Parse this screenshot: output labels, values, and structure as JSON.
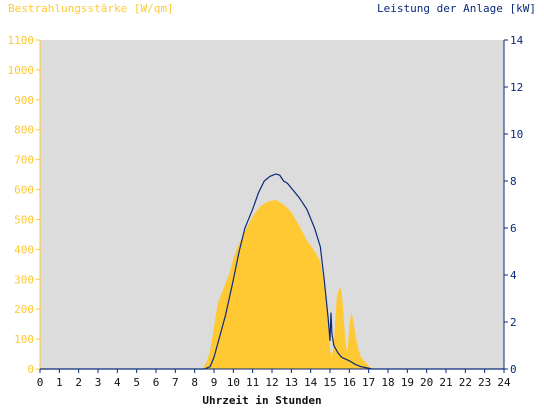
{
  "chart_data": {
    "type": "area",
    "left_axis_title": "Bestrahlungsstärke [W/qm]",
    "right_axis_title": "Leistung der Anlage [kW]",
    "xlabel": "Uhrzeit in Stunden",
    "x_ticks": [
      "0",
      "1",
      "2",
      "3",
      "4",
      "5",
      "6",
      "7",
      "8",
      "9",
      "10",
      "11",
      "12",
      "13",
      "14",
      "15",
      "16",
      "17",
      "18",
      "19",
      "20",
      "21",
      "22",
      "23",
      "24"
    ],
    "left_ticks": [
      "0",
      "100",
      "200",
      "300",
      "400",
      "500",
      "600",
      "700",
      "800",
      "900",
      "1000",
      "1100"
    ],
    "right_ticks": [
      "0",
      "2",
      "4",
      "6",
      "8",
      "10",
      "12",
      "14"
    ],
    "xlim": [
      0,
      24
    ],
    "ylim_left": [
      0,
      1100
    ],
    "ylim_right": [
      0,
      14
    ],
    "grid": false,
    "colors": {
      "plot_bg": "#dcdcdc",
      "irradiance": "#ffc933",
      "power": "#0a2a7a",
      "left_axis_text": "#ffc933",
      "right_axis_text": "#0a2a7a"
    },
    "series": [
      {
        "type": "area",
        "axis": "left",
        "x": [
          0,
          8.4,
          8.6,
          8.8,
          9.0,
          9.2,
          9.5,
          9.8,
          10.0,
          10.3,
          10.6,
          11.0,
          11.4,
          11.8,
          12.2,
          12.6,
          13.0,
          13.4,
          13.8,
          14.2,
          14.5,
          14.7,
          14.9,
          15.0,
          15.1,
          15.2,
          15.35,
          15.5,
          15.6,
          15.7,
          15.8,
          15.9,
          16.0,
          16.1,
          16.2,
          16.3,
          16.45,
          16.6,
          16.8,
          17.0,
          17.2,
          24
        ],
        "values": [
          0,
          0,
          20,
          60,
          140,
          220,
          270,
          320,
          370,
          420,
          460,
          510,
          545,
          560,
          565,
          550,
          525,
          480,
          430,
          395,
          360,
          280,
          170,
          60,
          40,
          90,
          240,
          275,
          260,
          180,
          90,
          50,
          140,
          190,
          165,
          120,
          70,
          40,
          25,
          10,
          0,
          0
        ]
      },
      {
        "type": "line",
        "axis": "right",
        "x": [
          0,
          8.5,
          8.8,
          9.0,
          9.3,
          9.6,
          10.0,
          10.3,
          10.6,
          11.0,
          11.3,
          11.6,
          11.9,
          12.2,
          12.4,
          12.6,
          12.8,
          13.1,
          13.4,
          13.8,
          14.2,
          14.5,
          14.7,
          14.9,
          15.0,
          15.05,
          15.1,
          15.2,
          15.4,
          15.6,
          16.0,
          16.3,
          16.6,
          16.9,
          17.2,
          17.5,
          24
        ],
        "values": [
          0,
          0,
          0.1,
          0.5,
          1.4,
          2.3,
          3.8,
          5.0,
          6.0,
          6.8,
          7.5,
          8.0,
          8.2,
          8.3,
          8.25,
          8.0,
          7.9,
          7.6,
          7.3,
          6.8,
          6.0,
          5.2,
          3.8,
          2.2,
          1.2,
          2.4,
          1.5,
          1.0,
          0.7,
          0.5,
          0.35,
          0.2,
          0.1,
          0.05,
          0,
          0,
          0
        ]
      }
    ]
  }
}
